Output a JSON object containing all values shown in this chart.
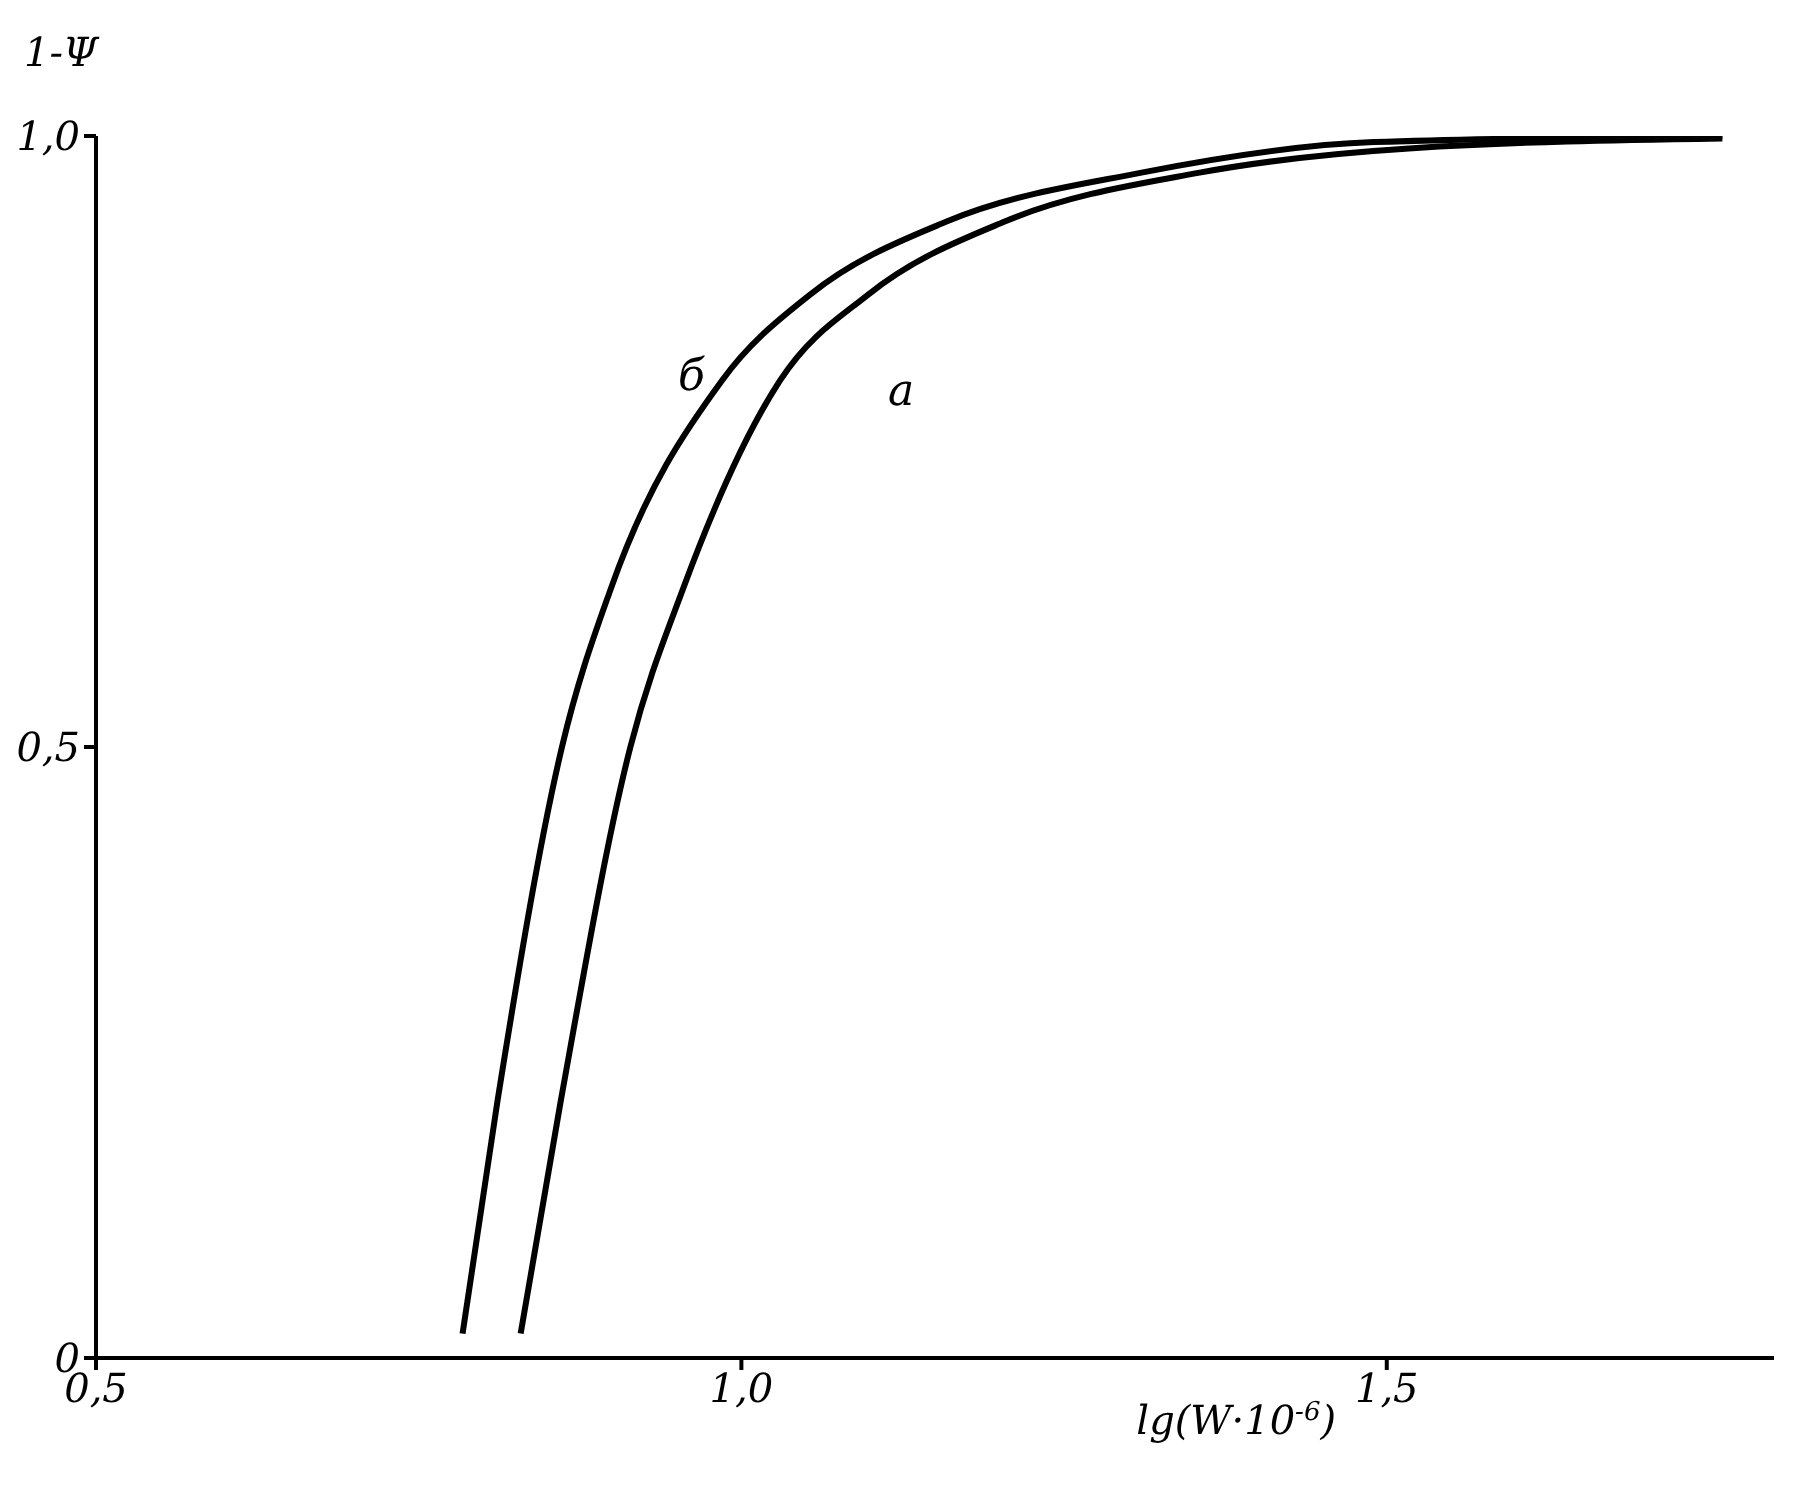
{
  "chart_data": {
    "type": "line",
    "xlabel": "lg(W·10$^{-6}$)",
    "ylabel": "1-Ψ",
    "xlim": [
      0.5,
      1.8
    ],
    "xticks": [
      {
        "value": 0.5,
        "label": "0,5"
      },
      {
        "value": 1.0,
        "label": "1,0"
      },
      {
        "value": 1.5,
        "label": "1,5"
      }
    ],
    "ylim": [
      0,
      1.0
    ],
    "yticks": [
      {
        "value": 0,
        "label": "0"
      },
      {
        "value": 0.5,
        "label": "0,5"
      },
      {
        "value": 1.0,
        "label": "1,0"
      }
    ],
    "grid": false,
    "legend": false,
    "marker": "none",
    "line_style": "solid",
    "series": [
      {
        "name": "б",
        "color": "#000000",
        "x": [
          0.784,
          0.811,
          0.861,
          0.899,
          0.985,
          1.053,
          1.159,
          1.31,
          1.49,
          1.76
        ],
        "values": [
          0.02,
          0.21,
          0.5,
          0.63,
          0.8,
          0.87,
          0.93,
          0.97,
          0.995,
          1.0
        ]
      },
      {
        "name": "а",
        "color": "#000000",
        "x": [
          0.829,
          0.86,
          0.914,
          0.955,
          1.03,
          1.098,
          1.204,
          1.355,
          1.52,
          1.76
        ],
        "values": [
          0.02,
          0.21,
          0.5,
          0.63,
          0.8,
          0.87,
          0.93,
          0.97,
          0.99,
          0.998
        ]
      }
    ]
  }
}
